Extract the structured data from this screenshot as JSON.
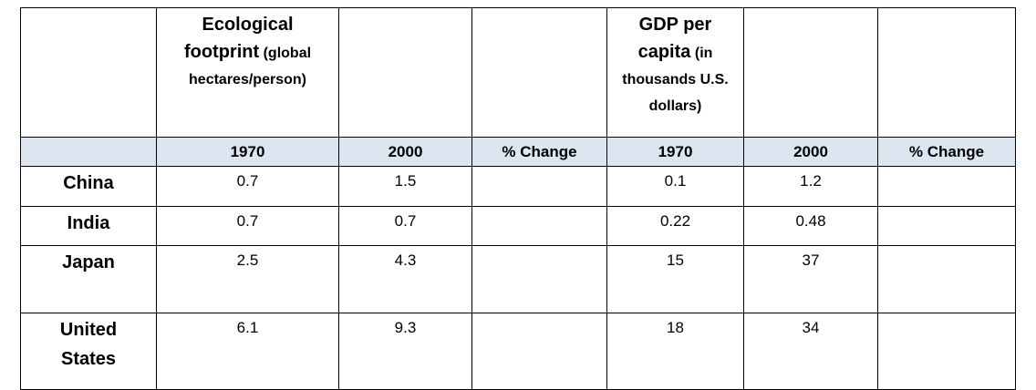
{
  "table": {
    "header": [
      {
        "main": "Ecological footprint",
        "sub": "(global hectares/person)"
      },
      {
        "main": "GDP per capita",
        "sub": "(in thousands U.S. dollars)"
      }
    ],
    "subheader": [
      "1970",
      "2000",
      "% Change",
      "1970",
      "2000",
      "% Change"
    ],
    "rows": [
      {
        "label": "China",
        "values": [
          "0.7",
          "1.5",
          "0.1",
          "1.2"
        ]
      },
      {
        "label": "India",
        "values": [
          "0.7",
          "0.7",
          "0.22",
          "0.48"
        ]
      },
      {
        "label": "Japan",
        "values": [
          "2.5",
          "4.3",
          "15",
          "37"
        ]
      },
      {
        "label": "United States",
        "values": [
          "6.1",
          "9.3",
          "18",
          "34"
        ]
      }
    ]
  }
}
